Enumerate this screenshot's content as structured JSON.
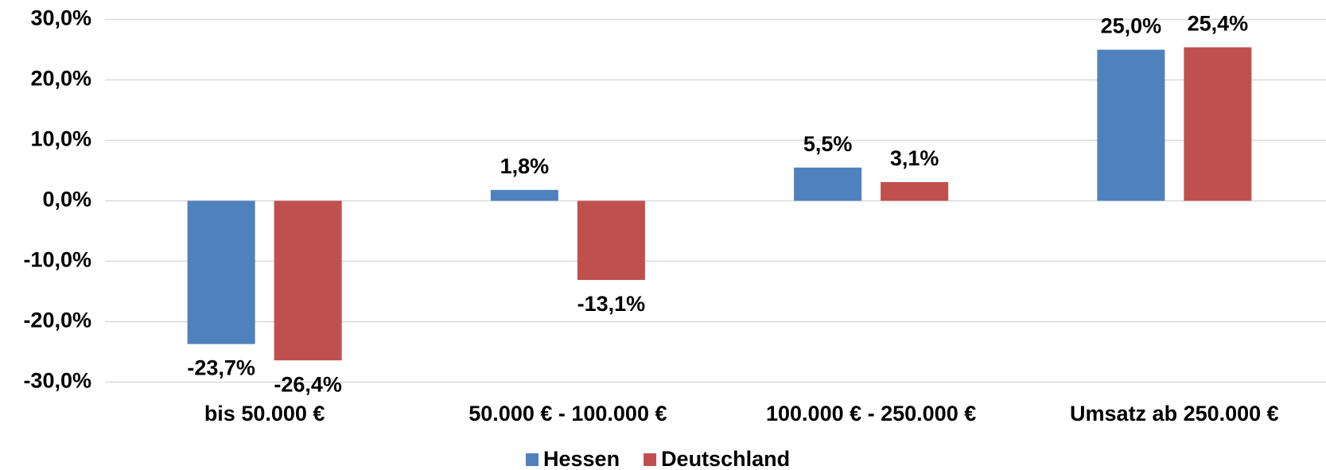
{
  "chart_data": {
    "type": "bar",
    "categories": [
      "bis 50.000 €",
      "50.000 € - 100.000 €",
      "100.000 € - 250.000 €",
      "Umsatz ab 250.000 €"
    ],
    "series": [
      {
        "name": "Hessen",
        "color": "#4f81bd",
        "values": [
          -23.7,
          1.8,
          5.5,
          25.0
        ],
        "value_labels": [
          "-23,7%",
          "1,8%",
          "5,5%",
          "25,0%"
        ]
      },
      {
        "name": "Deutschland",
        "color": "#c0504d",
        "values": [
          -26.4,
          -13.1,
          3.1,
          25.4
        ],
        "value_labels": [
          "-26,4%",
          "-13,1%",
          "3,1%",
          "25,4%"
        ]
      }
    ],
    "ylim": [
      -30,
      30
    ],
    "yticks": [
      {
        "value": -30,
        "label": "-30,0%"
      },
      {
        "value": -20,
        "label": "-20,0%"
      },
      {
        "value": -10,
        "label": "-10,0%"
      },
      {
        "value": 0,
        "label": "0,0%"
      },
      {
        "value": 10,
        "label": "10,0%"
      },
      {
        "value": 20,
        "label": "20,0%"
      },
      {
        "value": 30,
        "label": "30,0%"
      }
    ],
    "grid": true,
    "legend": "bottom"
  }
}
